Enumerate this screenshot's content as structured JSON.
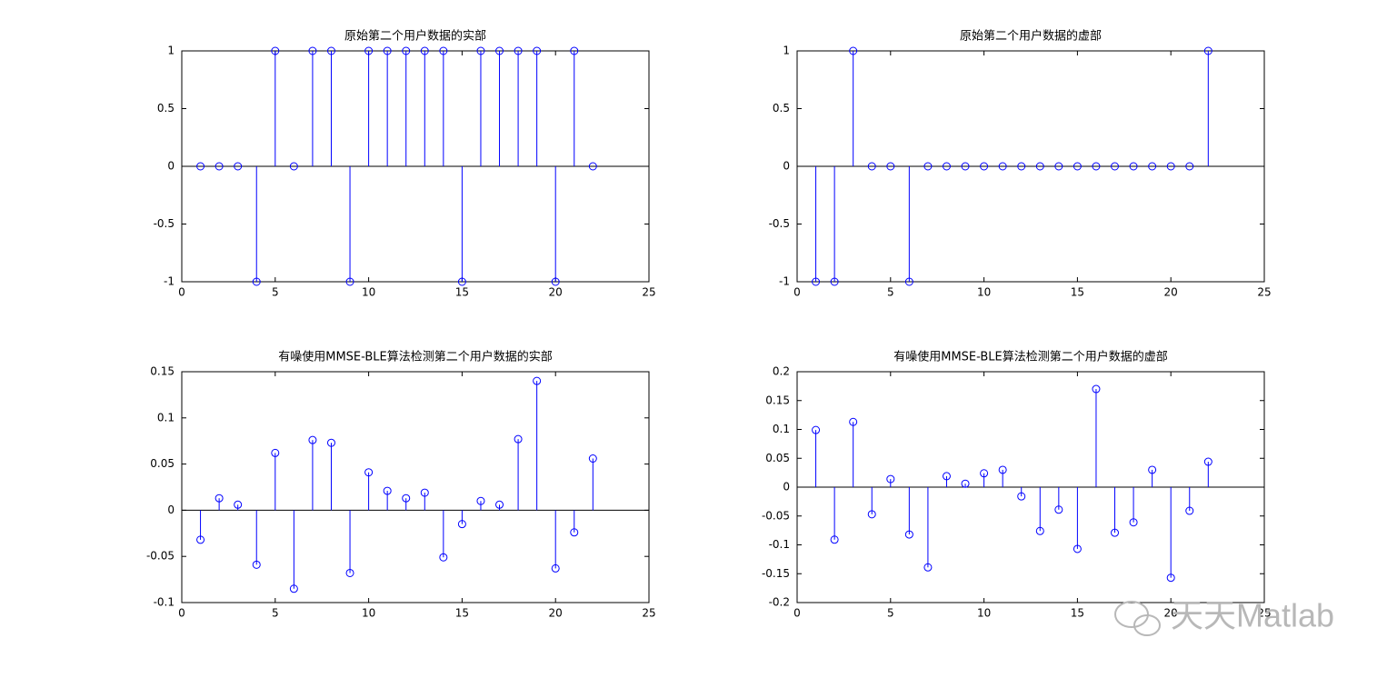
{
  "chart_data": [
    {
      "type": "stem",
      "title": "原始第二个用户数据的实部",
      "color": "#0000ff",
      "x": [
        1,
        2,
        3,
        4,
        5,
        6,
        7,
        8,
        9,
        10,
        11,
        12,
        13,
        14,
        15,
        16,
        17,
        18,
        19,
        20,
        21,
        22
      ],
      "values": [
        0,
        0,
        0,
        -1,
        1,
        0,
        1,
        1,
        -1,
        1,
        1,
        1,
        1,
        1,
        -1,
        1,
        1,
        1,
        1,
        -1,
        1,
        0
      ],
      "xlim": [
        0,
        25
      ],
      "xticks": [
        0,
        5,
        10,
        15,
        20,
        25
      ],
      "ylim": [
        -1,
        1
      ],
      "yticks": [
        -1,
        -0.5,
        0,
        0.5,
        1
      ]
    },
    {
      "type": "stem",
      "title": "原始第二个用户数据的虚部",
      "color": "#0000ff",
      "x": [
        1,
        2,
        3,
        4,
        5,
        6,
        7,
        8,
        9,
        10,
        11,
        12,
        13,
        14,
        15,
        16,
        17,
        18,
        19,
        20,
        21,
        22
      ],
      "values": [
        -1,
        -1,
        1,
        0,
        0,
        -1,
        0,
        0,
        0,
        0,
        0,
        0,
        0,
        0,
        0,
        0,
        0,
        0,
        0,
        0,
        0,
        1
      ],
      "xlim": [
        0,
        25
      ],
      "xticks": [
        0,
        5,
        10,
        15,
        20,
        25
      ],
      "ylim": [
        -1,
        1
      ],
      "yticks": [
        -1,
        -0.5,
        0,
        0.5,
        1
      ]
    },
    {
      "type": "stem",
      "title": "有噪使用MMSE-BLE算法检测第二个用户数据的实部",
      "color": "#0000ff",
      "x": [
        1,
        2,
        3,
        4,
        5,
        6,
        7,
        8,
        9,
        10,
        11,
        12,
        13,
        14,
        15,
        16,
        17,
        18,
        19,
        20,
        21,
        22
      ],
      "values": [
        -0.032,
        0.013,
        0.006,
        -0.059,
        0.062,
        -0.085,
        0.076,
        0.073,
        -0.068,
        0.041,
        0.021,
        0.013,
        0.019,
        -0.051,
        -0.015,
        0.01,
        0.006,
        0.077,
        0.14,
        -0.063,
        -0.024,
        0.056
      ],
      "xlim": [
        0,
        25
      ],
      "xticks": [
        0,
        5,
        10,
        15,
        20,
        25
      ],
      "ylim": [
        -0.1,
        0.15
      ],
      "yticks": [
        -0.1,
        -0.05,
        0,
        0.05,
        0.1,
        0.15
      ]
    },
    {
      "type": "stem",
      "title": "有噪使用MMSE-BLE算法检测第二个用户数据的虚部",
      "color": "#0000ff",
      "x": [
        1,
        2,
        3,
        4,
        5,
        6,
        7,
        8,
        9,
        10,
        11,
        12,
        13,
        14,
        15,
        16,
        17,
        18,
        19,
        20,
        21,
        22
      ],
      "values": [
        0.099,
        -0.091,
        0.113,
        -0.047,
        0.014,
        -0.082,
        -0.139,
        0.019,
        0.006,
        0.024,
        0.03,
        -0.016,
        -0.076,
        -0.039,
        -0.107,
        0.17,
        -0.079,
        -0.061,
        0.03,
        -0.157,
        -0.041,
        0.044
      ],
      "xlim": [
        0,
        25
      ],
      "xticks": [
        0,
        5,
        10,
        15,
        20,
        25
      ],
      "ylim": [
        -0.2,
        0.2
      ],
      "yticks": [
        -0.2,
        -0.15,
        -0.1,
        -0.05,
        0,
        0.05,
        0.1,
        0.15,
        0.2
      ]
    }
  ],
  "watermark": "天天Matlab"
}
